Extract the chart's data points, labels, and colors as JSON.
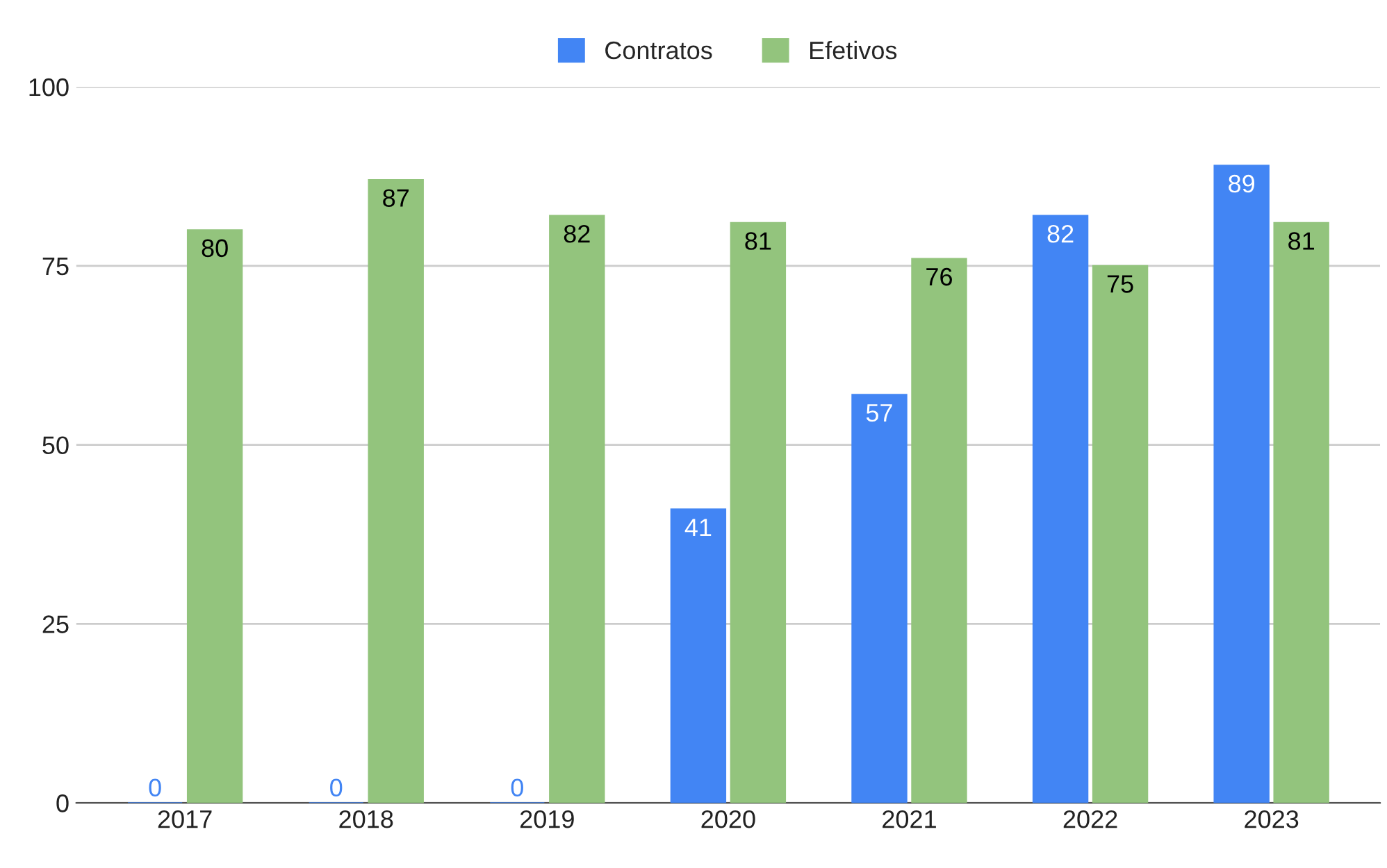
{
  "chart_data": {
    "type": "bar",
    "categories": [
      "2017",
      "2018",
      "2019",
      "2020",
      "2021",
      "2022",
      "2023"
    ],
    "series": [
      {
        "name": "Contratos",
        "color": "#4285f4",
        "values": [
          0,
          0,
          0,
          41,
          57,
          82,
          89
        ]
      },
      {
        "name": "Efetivos",
        "color": "#93c47d",
        "values": [
          80,
          87,
          82,
          81,
          76,
          75,
          81
        ]
      }
    ],
    "ylim": [
      0,
      100
    ],
    "yticks": [
      0,
      25,
      50,
      75,
      100
    ],
    "grid": "y",
    "legend": "top",
    "data_labels": true
  }
}
